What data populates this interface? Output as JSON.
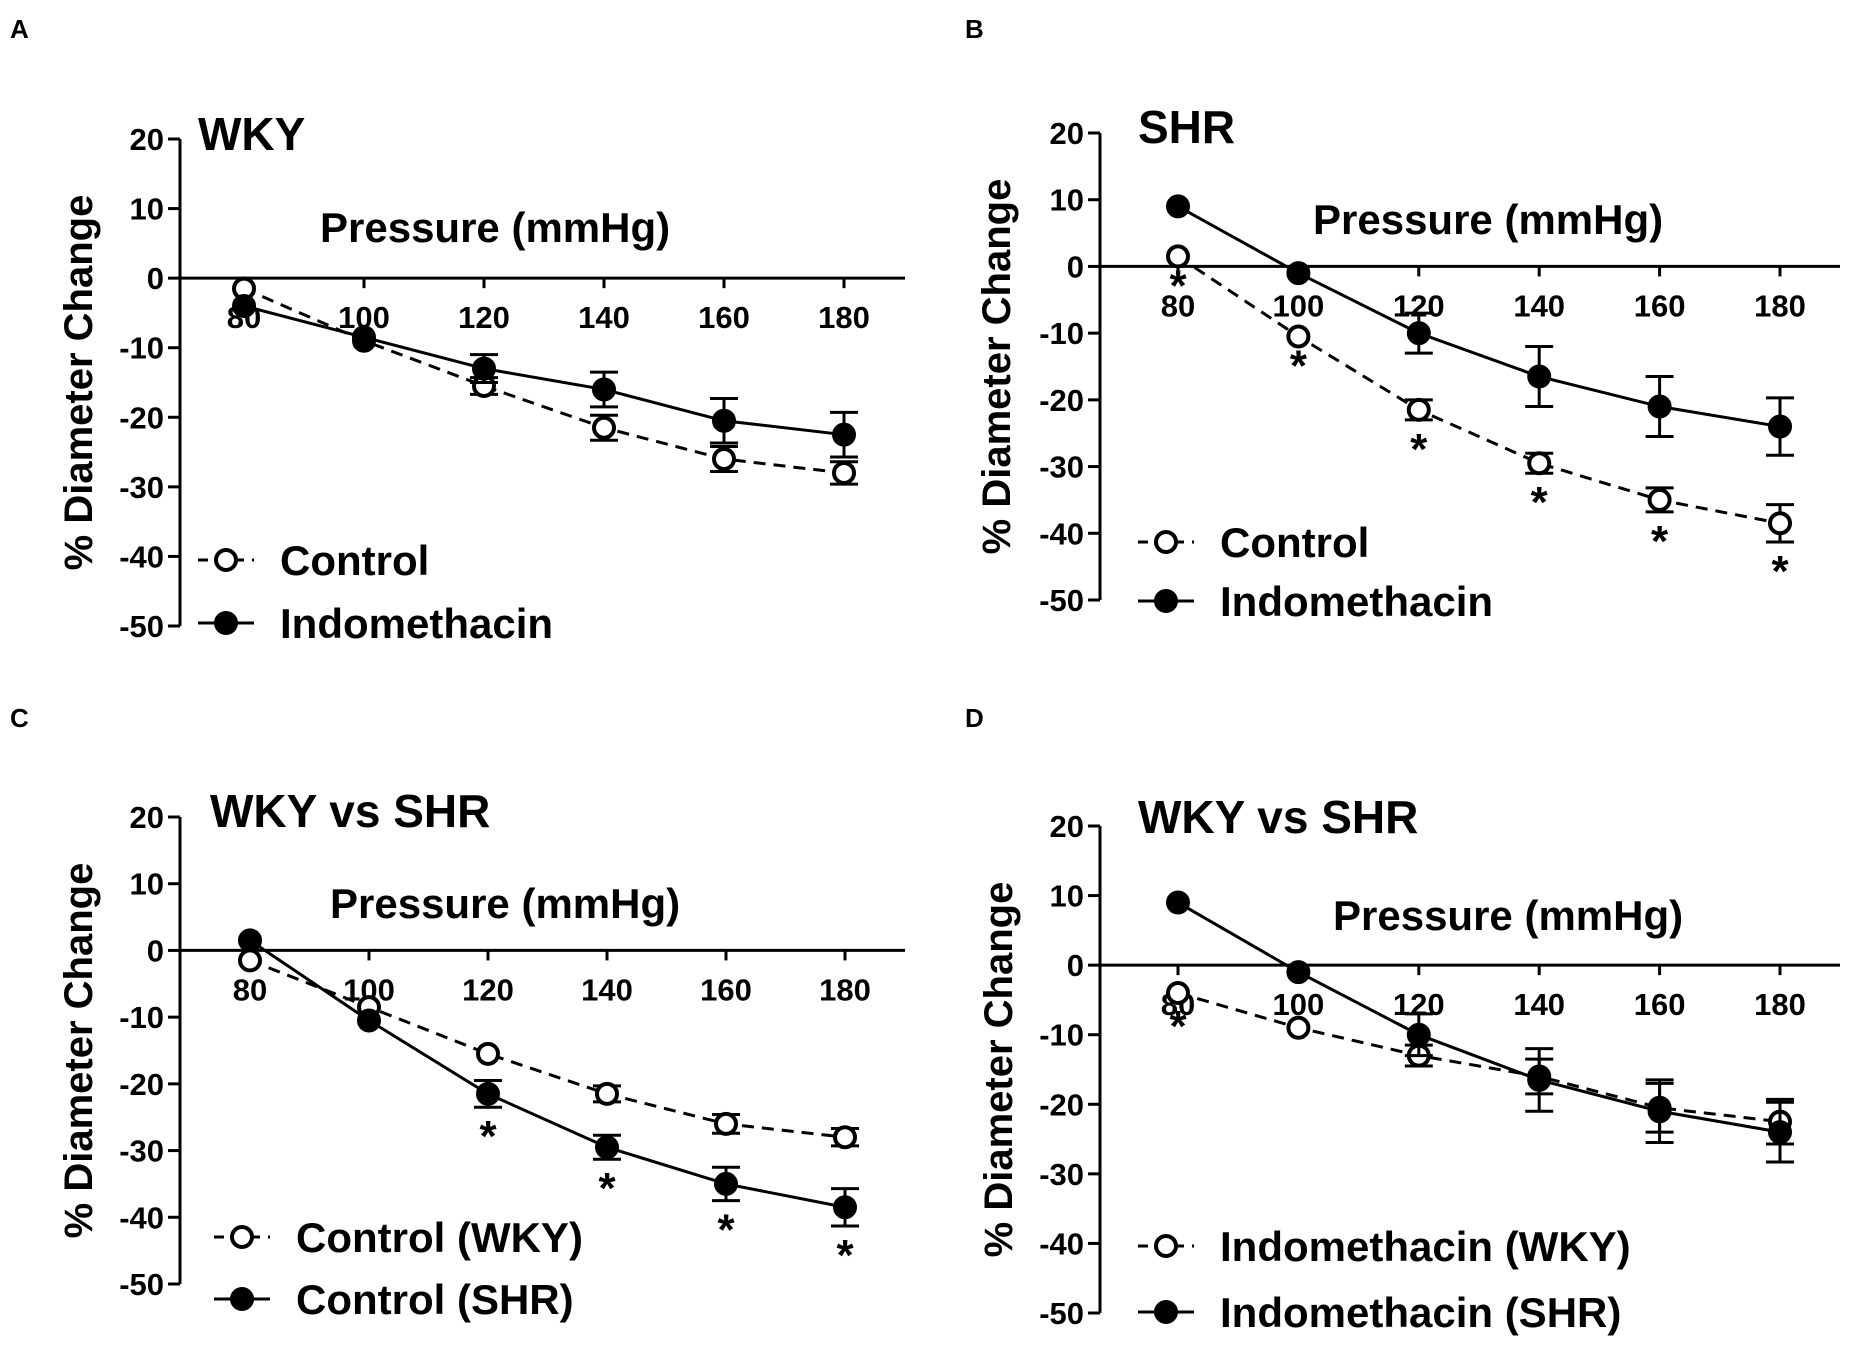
{
  "colors": {
    "ink": "#000000",
    "background": "#ffffff",
    "open_marker_fill": "#ffffff"
  },
  "chart_data": [
    {
      "panel_label": "A",
      "type": "line",
      "title": "WKY",
      "xlabel": "Pressure (mmHg)",
      "ylabel": "% Diameter Change",
      "ylim": [
        -50,
        20
      ],
      "yticks": [
        "20",
        "10",
        "0",
        "-10",
        "-20",
        "-30",
        "-40",
        "-50"
      ],
      "yticks_values": [
        20,
        10,
        0,
        -10,
        -20,
        -30,
        -40,
        -50
      ],
      "categories": [
        "80",
        "100",
        "120",
        "140",
        "160",
        "180"
      ],
      "x": [
        80,
        100,
        120,
        140,
        160,
        180
      ],
      "legend_position": "bottom-left",
      "significance_marker": "*",
      "series": [
        {
          "name": "Control",
          "marker": "open-circle",
          "line": "dashed",
          "values": [
            -1.5,
            -9,
            -15.5,
            -21.5,
            -26,
            -28
          ],
          "errors": [
            0,
            0,
            1.2,
            1.8,
            1.8,
            1.6
          ],
          "significant": []
        },
        {
          "name": "Indomethacin",
          "marker": "filled-circle",
          "line": "solid",
          "values": [
            -4,
            -8.5,
            -13,
            -16,
            -20.5,
            -22.5
          ],
          "errors": [
            0,
            0,
            2,
            2.5,
            3.2,
            3.2
          ],
          "significant": []
        }
      ]
    },
    {
      "panel_label": "B",
      "type": "line",
      "title": "SHR",
      "xlabel": "Pressure (mmHg)",
      "ylabel": "% Diameter Change",
      "ylim": [
        -50,
        20
      ],
      "yticks": [
        "20",
        "10",
        "0",
        "-10",
        "-20",
        "-30",
        "-40",
        "-50"
      ],
      "yticks_values": [
        20,
        10,
        0,
        -10,
        -20,
        -30,
        -40,
        -50
      ],
      "categories": [
        "80",
        "100",
        "120",
        "140",
        "160",
        "180"
      ],
      "x": [
        80,
        100,
        120,
        140,
        160,
        180
      ],
      "legend_position": "bottom-left",
      "significance_marker": "*",
      "series": [
        {
          "name": "Control",
          "marker": "open-circle",
          "line": "dashed",
          "values": [
            1.5,
            -10.5,
            -21.5,
            -29.5,
            -35,
            -38.5
          ],
          "errors": [
            0,
            0,
            1.5,
            1.5,
            1.8,
            2.8
          ],
          "significant": [
            0,
            1,
            2,
            3,
            4,
            5
          ]
        },
        {
          "name": "Indomethacin",
          "marker": "filled-circle",
          "line": "solid",
          "values": [
            9,
            -1,
            -10,
            -16.5,
            -21,
            -24
          ],
          "errors": [
            0,
            0,
            3,
            4.5,
            4.5,
            4.3
          ],
          "significant": []
        }
      ]
    },
    {
      "panel_label": "C",
      "type": "line",
      "title": "WKY vs SHR",
      "xlabel": "Pressure (mmHg)",
      "ylabel": "% Diameter Change",
      "ylim": [
        -50,
        20
      ],
      "yticks": [
        "20",
        "10",
        "0",
        "-10",
        "-20",
        "-30",
        "-40",
        "-50"
      ],
      "yticks_values": [
        20,
        10,
        0,
        -10,
        -20,
        -30,
        -40,
        -50
      ],
      "categories": [
        "80",
        "100",
        "120",
        "140",
        "160",
        "180"
      ],
      "x": [
        80,
        100,
        120,
        140,
        160,
        180
      ],
      "legend_position": "bottom-left",
      "significance_marker": "*",
      "series": [
        {
          "name": "Control (WKY)",
          "marker": "open-circle",
          "line": "dashed",
          "values": [
            -1.5,
            -8.5,
            -15.5,
            -21.5,
            -26,
            -28
          ],
          "errors": [
            0,
            0,
            0,
            1.2,
            1.4,
            1.3
          ],
          "significant": []
        },
        {
          "name": "Control (SHR)",
          "marker": "filled-circle",
          "line": "solid",
          "values": [
            1.5,
            -10.5,
            -21.5,
            -29.5,
            -35,
            -38.5
          ],
          "errors": [
            0,
            0,
            2,
            1.8,
            2.5,
            2.8
          ],
          "significant": [
            2,
            3,
            4,
            5
          ]
        }
      ]
    },
    {
      "panel_label": "D",
      "type": "line",
      "title": "WKY vs SHR",
      "xlabel": "Pressure (mmHg)",
      "ylabel": "% Diameter Change",
      "ylim": [
        -50,
        20
      ],
      "yticks": [
        "20",
        "10",
        "0",
        "-10",
        "-20",
        "-30",
        "-40",
        "-50"
      ],
      "yticks_values": [
        20,
        10,
        0,
        -10,
        -20,
        -30,
        -40,
        -50
      ],
      "categories": [
        "80",
        "100",
        "120",
        "140",
        "160",
        "180"
      ],
      "x": [
        80,
        100,
        120,
        140,
        160,
        180
      ],
      "legend_position": "bottom-left",
      "significance_marker": "*",
      "series": [
        {
          "name": "Indomethacin (WKY)",
          "marker": "open-circle",
          "line": "dashed",
          "values": [
            -4,
            -9,
            -13,
            -16,
            -20.5,
            -22.5
          ],
          "errors": [
            0,
            0,
            1.5,
            2.5,
            3.5,
            3.2
          ],
          "significant": [
            0
          ]
        },
        {
          "name": "Indomethacin (SHR)",
          "marker": "filled-circle",
          "line": "solid",
          "values": [
            9,
            -1,
            -10,
            -16.5,
            -21,
            -24
          ],
          "errors": [
            0,
            0,
            3,
            4.5,
            4.5,
            4.3
          ],
          "significant": []
        }
      ]
    }
  ]
}
